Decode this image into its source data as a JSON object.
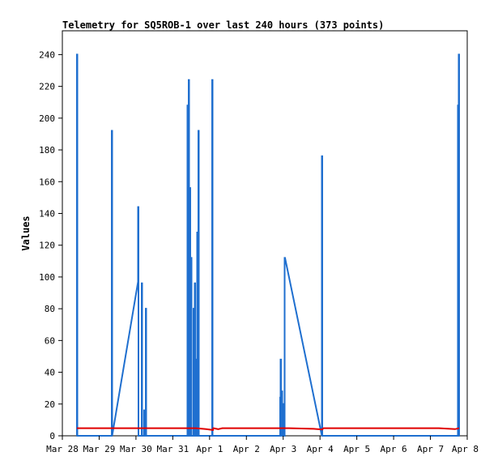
{
  "chart_data": {
    "type": "line",
    "title": "Telemetry for SQ5ROB-1 over last 240 hours (373 points)",
    "ylabel": "Values",
    "xlabel": "",
    "x_ticks": [
      "Mar 28",
      "Mar 29",
      "Mar 30",
      "Mar 31",
      "Apr 1",
      "Apr 2",
      "Apr 3",
      "Apr 4",
      "Apr 5",
      "Apr 6",
      "Apr 7",
      "Apr 8"
    ],
    "xlim": [
      0,
      10
    ],
    "ylim": [
      0,
      255
    ],
    "y_ticks": [
      0,
      20,
      40,
      60,
      80,
      100,
      120,
      140,
      160,
      180,
      200,
      220,
      240
    ],
    "grid": false,
    "series": [
      {
        "color": "#1f6fcf",
        "points": [
          [
            0.36,
            0
          ],
          [
            0.36,
            240
          ],
          [
            0.37,
            240
          ],
          [
            0.37,
            0
          ],
          [
            1.22,
            0
          ],
          [
            1.22,
            192
          ],
          [
            1.23,
            192
          ],
          [
            1.23,
            0
          ],
          [
            1.87,
            97
          ],
          [
            1.87,
            144
          ],
          [
            1.88,
            144
          ],
          [
            1.88,
            0
          ],
          [
            1.96,
            0
          ],
          [
            1.96,
            96
          ],
          [
            1.97,
            96
          ],
          [
            1.97,
            0
          ],
          [
            2.02,
            0
          ],
          [
            2.02,
            16
          ],
          [
            2.03,
            16
          ],
          [
            2.03,
            0
          ],
          [
            2.06,
            0
          ],
          [
            2.06,
            80
          ],
          [
            2.07,
            80
          ],
          [
            2.07,
            0
          ],
          [
            3.09,
            0
          ],
          [
            3.09,
            208
          ],
          [
            3.1,
            208
          ],
          [
            3.1,
            0
          ],
          [
            3.12,
            0
          ],
          [
            3.12,
            224
          ],
          [
            3.13,
            224
          ],
          [
            3.13,
            52
          ],
          [
            3.15,
            52
          ],
          [
            3.15,
            156
          ],
          [
            3.16,
            156
          ],
          [
            3.16,
            0
          ],
          [
            3.18,
            0
          ],
          [
            3.18,
            112
          ],
          [
            3.19,
            112
          ],
          [
            3.19,
            0
          ],
          [
            3.24,
            0
          ],
          [
            3.24,
            80
          ],
          [
            3.25,
            80
          ],
          [
            3.25,
            0
          ],
          [
            3.27,
            0
          ],
          [
            3.27,
            96
          ],
          [
            3.28,
            96
          ],
          [
            3.28,
            0
          ],
          [
            3.3,
            0
          ],
          [
            3.3,
            48
          ],
          [
            3.31,
            48
          ],
          [
            3.31,
            0
          ],
          [
            3.33,
            0
          ],
          [
            3.33,
            128
          ],
          [
            3.34,
            128
          ],
          [
            3.34,
            0
          ],
          [
            3.36,
            0
          ],
          [
            3.36,
            192
          ],
          [
            3.37,
            192
          ],
          [
            3.37,
            0
          ],
          [
            3.7,
            0
          ],
          [
            3.7,
            224
          ],
          [
            3.71,
            224
          ],
          [
            3.71,
            0
          ],
          [
            5.38,
            0
          ],
          [
            5.38,
            24
          ],
          [
            5.39,
            24
          ],
          [
            5.39,
            48
          ],
          [
            5.4,
            48
          ],
          [
            5.4,
            0
          ],
          [
            5.42,
            0
          ],
          [
            5.42,
            28
          ],
          [
            5.43,
            28
          ],
          [
            5.43,
            0
          ],
          [
            5.46,
            0
          ],
          [
            5.46,
            20
          ],
          [
            5.47,
            20
          ],
          [
            5.47,
            0
          ],
          [
            5.49,
            0
          ],
          [
            5.49,
            112
          ],
          [
            5.5,
            112
          ],
          [
            6.41,
            0
          ],
          [
            6.41,
            176
          ],
          [
            6.42,
            176
          ],
          [
            6.42,
            0
          ],
          [
            9.77,
            0
          ],
          [
            9.77,
            208
          ],
          [
            9.78,
            208
          ],
          [
            9.78,
            0
          ],
          [
            9.79,
            0
          ],
          [
            9.79,
            240
          ],
          [
            9.8,
            240
          ],
          [
            9.8,
            0
          ]
        ]
      },
      {
        "color": "#e00000",
        "points": [
          [
            0.36,
            4.8
          ],
          [
            1.5,
            4.8
          ],
          [
            2.5,
            4.8
          ],
          [
            3.3,
            4.8
          ],
          [
            3.55,
            4.2
          ],
          [
            3.72,
            3.6
          ],
          [
            3.73,
            4.8
          ],
          [
            3.85,
            4.2
          ],
          [
            3.95,
            4.8
          ],
          [
            5.0,
            4.8
          ],
          [
            5.6,
            4.8
          ],
          [
            6.2,
            4.4
          ],
          [
            6.42,
            4.0
          ],
          [
            6.45,
            4.8
          ],
          [
            8.0,
            4.8
          ],
          [
            9.3,
            4.8
          ],
          [
            9.7,
            4.2
          ],
          [
            9.8,
            4.8
          ]
        ]
      }
    ]
  }
}
